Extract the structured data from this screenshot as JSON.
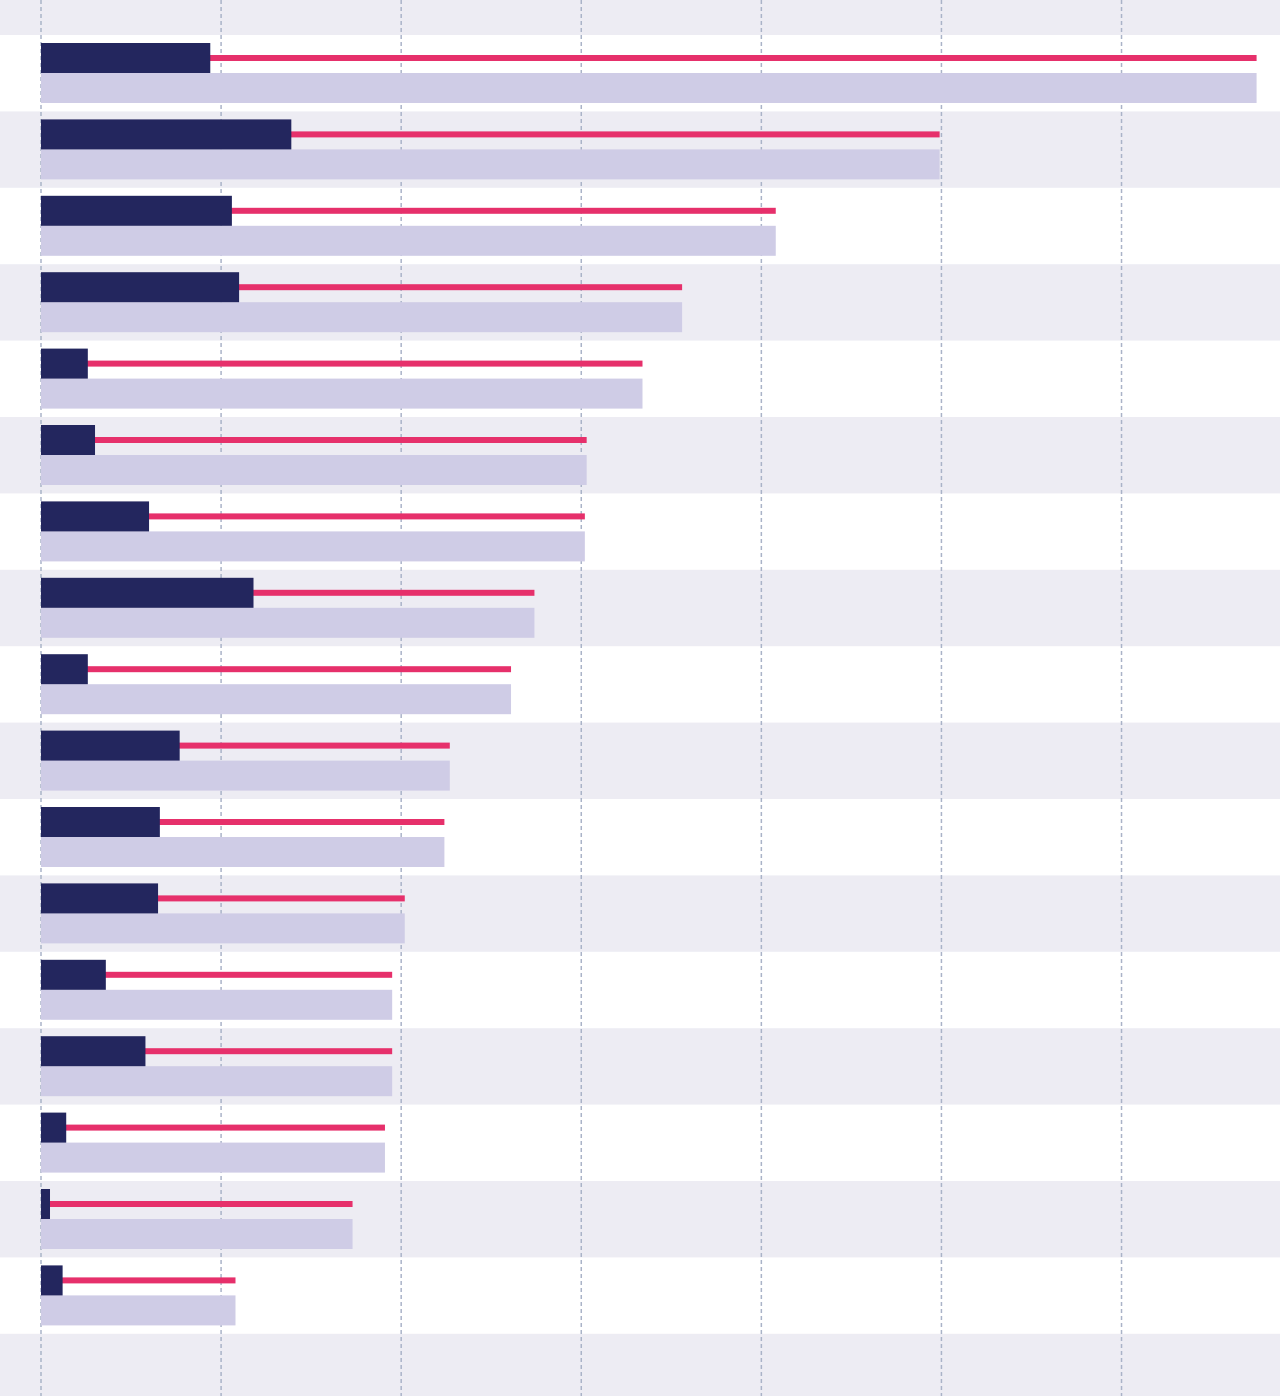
{
  "chart_data": {
    "type": "bar",
    "orientation": "horizontal",
    "grid": true,
    "categories": [
      null,
      null,
      null,
      null,
      null,
      null,
      null,
      null,
      null,
      null,
      null,
      null,
      null,
      null,
      null,
      null,
      null
    ],
    "series": [
      {
        "color": "#23265e",
        "values": [
          9.4,
          13.9,
          10.6,
          11.0,
          2.6,
          3.0,
          6.0,
          11.8,
          2.6,
          7.7,
          6.6,
          6.5,
          3.6,
          5.8,
          1.4,
          0.5,
          1.2
        ]
      },
      {
        "color": "#cfcce6",
        "line_color": "#e6306b",
        "values": [
          67.5,
          49.9,
          40.8,
          35.6,
          33.4,
          30.3,
          30.2,
          27.4,
          26.1,
          22.7,
          22.4,
          20.2,
          19.5,
          19.5,
          19.1,
          17.3,
          10.8
        ]
      }
    ],
    "xlim": [
      0,
      68.8
    ],
    "xticks": [
      0,
      10,
      20,
      30,
      40,
      50,
      60
    ]
  }
}
